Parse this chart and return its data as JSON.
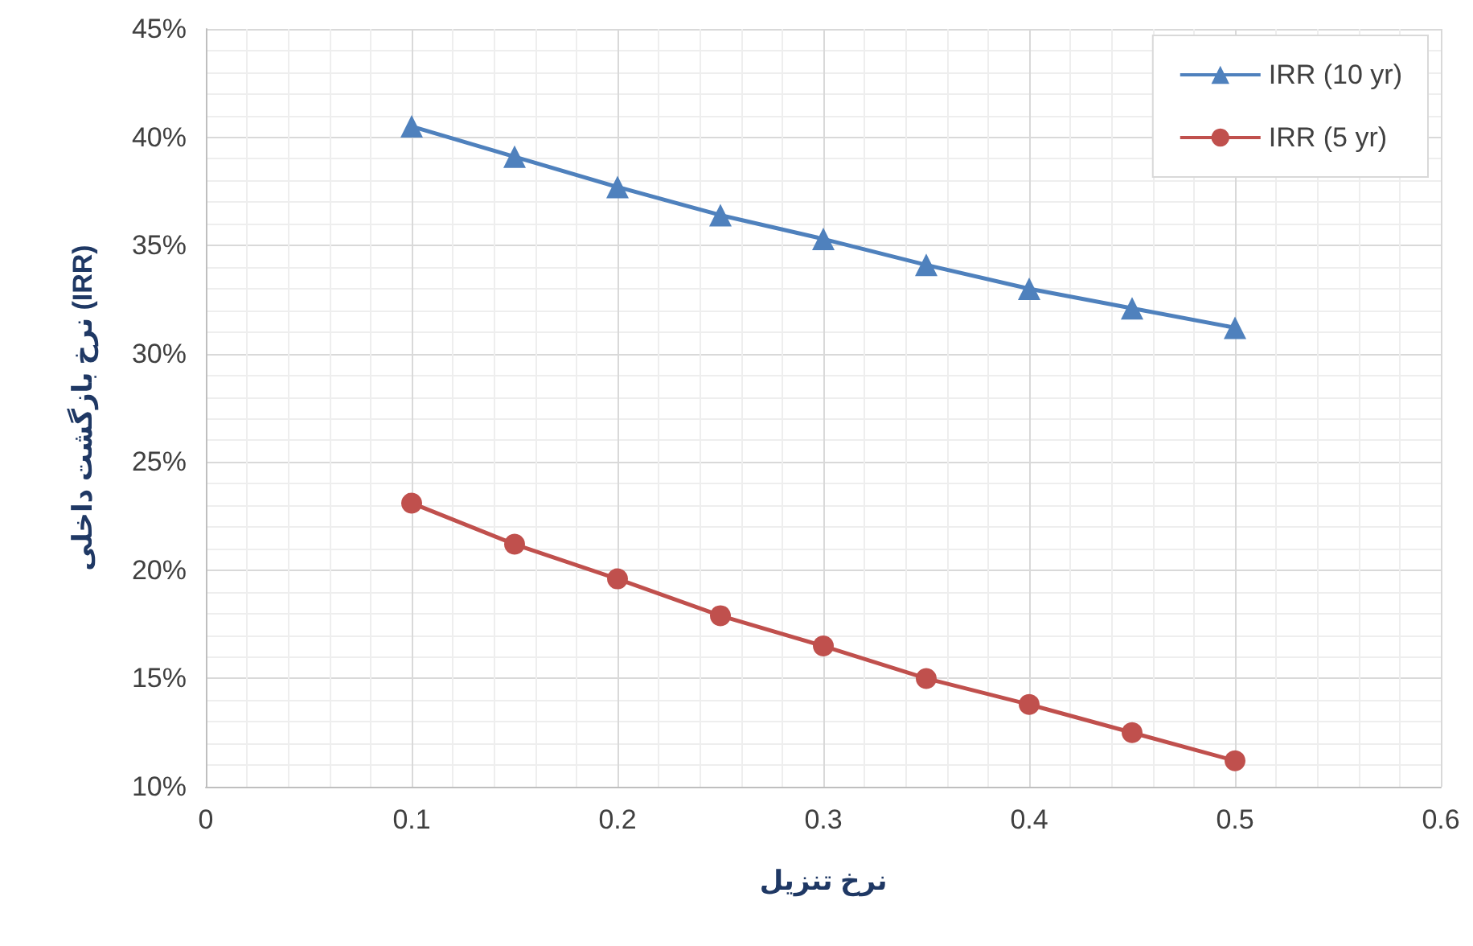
{
  "chart_data": {
    "type": "line",
    "xlabel": "نرخ تنزیل",
    "ylabel": "نرخ بازگشت داخلی (IRR)",
    "x": [
      0.1,
      0.15,
      0.2,
      0.25,
      0.3,
      0.35,
      0.4,
      0.45,
      0.5
    ],
    "series": [
      {
        "name": "IRR (10 yr)",
        "color": "#4f81bd",
        "marker": "triangle",
        "values": [
          40.5,
          39.1,
          37.7,
          36.4,
          35.3,
          34.1,
          33.0,
          32.1,
          31.2
        ]
      },
      {
        "name": "IRR (5 yr)",
        "color": "#c0504d",
        "marker": "circle",
        "values": [
          23.1,
          21.2,
          19.6,
          17.9,
          16.5,
          15.0,
          13.8,
          12.5,
          11.2
        ]
      }
    ],
    "xlim": [
      0,
      0.6
    ],
    "xticks": [
      0,
      0.1,
      0.2,
      0.3,
      0.4,
      0.5,
      0.6
    ],
    "ylim": [
      10,
      45
    ],
    "yticks": [
      {
        "value": 10,
        "label": "10%"
      },
      {
        "value": 15,
        "label": "15%"
      },
      {
        "value": 20,
        "label": "20%"
      },
      {
        "value": 25,
        "label": "25%"
      },
      {
        "value": 30,
        "label": "30%"
      },
      {
        "value": 35,
        "label": "35%"
      },
      {
        "value": 40,
        "label": "40%"
      },
      {
        "value": 45,
        "label": "45%"
      }
    ],
    "grid": true,
    "legend": "top right",
    "line_style": "solid"
  }
}
